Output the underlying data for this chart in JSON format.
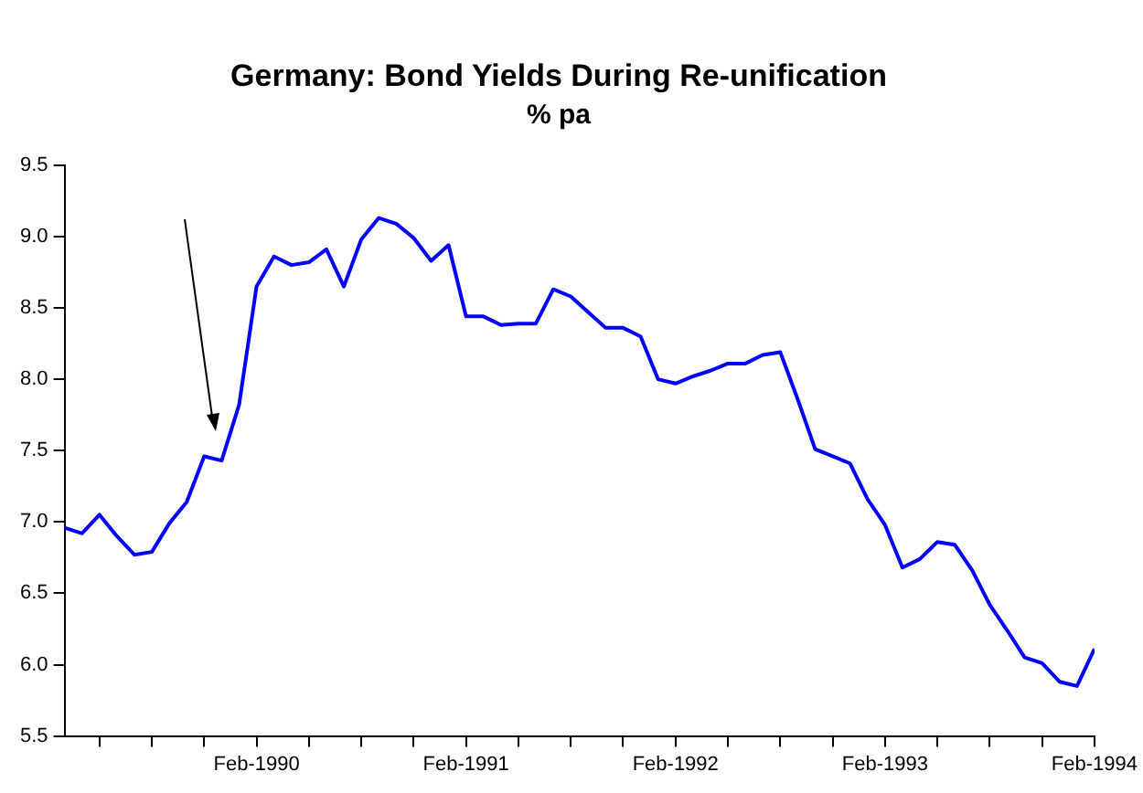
{
  "chart_data": {
    "type": "line",
    "title": "Germany: Bond Yields During Re-unification",
    "subtitle": "% pa",
    "x": [
      "1989-03",
      "1989-04",
      "1989-05",
      "1989-06",
      "1989-07",
      "1989-08",
      "1989-09",
      "1989-10",
      "1989-11",
      "1989-12",
      "1990-01",
      "1990-02",
      "1990-03",
      "1990-04",
      "1990-05",
      "1990-06",
      "1990-07",
      "1990-08",
      "1990-09",
      "1990-10",
      "1990-11",
      "1990-12",
      "1991-01",
      "1991-02",
      "1991-03",
      "1991-04",
      "1991-05",
      "1991-06",
      "1991-07",
      "1991-08",
      "1991-09",
      "1991-10",
      "1991-11",
      "1991-12",
      "1992-01",
      "1992-02",
      "1992-03",
      "1992-04",
      "1992-05",
      "1992-06",
      "1992-07",
      "1992-08",
      "1992-09",
      "1992-10",
      "1992-11",
      "1992-12",
      "1993-01",
      "1993-02",
      "1993-03",
      "1993-04",
      "1993-05",
      "1993-06",
      "1993-07",
      "1993-08",
      "1993-09",
      "1993-10",
      "1993-11",
      "1993-12",
      "1994-01",
      "1994-02"
    ],
    "series": [
      {
        "color": "#0000ff",
        "values": [
          6.96,
          6.92,
          7.05,
          6.9,
          6.77,
          6.79,
          6.99,
          7.14,
          7.46,
          7.43,
          7.82,
          8.65,
          8.86,
          8.8,
          8.82,
          8.91,
          8.65,
          8.98,
          9.13,
          9.09,
          8.99,
          8.83,
          8.94,
          8.44,
          8.44,
          8.38,
          8.39,
          8.39,
          8.63,
          8.58,
          8.47,
          8.36,
          8.36,
          8.3,
          8.0,
          7.97,
          8.02,
          8.06,
          8.11,
          8.11,
          8.17,
          8.19,
          7.86,
          7.51,
          7.46,
          7.41,
          7.16,
          6.98,
          6.68,
          6.74,
          6.86,
          6.84,
          6.66,
          6.42,
          6.24,
          6.05,
          6.01,
          5.88,
          5.85,
          6.11
        ]
      }
    ],
    "xlim": [
      "1989-03",
      "1994-02"
    ],
    "xticks": [
      {
        "value": "1989-05",
        "label": null
      },
      {
        "value": "1989-08",
        "label": null
      },
      {
        "value": "1989-11",
        "label": null
      },
      {
        "value": "1990-02",
        "label": "Feb-1990"
      },
      {
        "value": "1990-05",
        "label": null
      },
      {
        "value": "1990-08",
        "label": null
      },
      {
        "value": "1990-11",
        "label": null
      },
      {
        "value": "1991-02",
        "label": "Feb-1991"
      },
      {
        "value": "1991-05",
        "label": null
      },
      {
        "value": "1991-08",
        "label": null
      },
      {
        "value": "1991-11",
        "label": null
      },
      {
        "value": "1992-02",
        "label": "Feb-1992"
      },
      {
        "value": "1992-05",
        "label": null
      },
      {
        "value": "1992-08",
        "label": null
      },
      {
        "value": "1992-11",
        "label": null
      },
      {
        "value": "1993-02",
        "label": "Feb-1993"
      },
      {
        "value": "1993-05",
        "label": null
      },
      {
        "value": "1993-08",
        "label": null
      },
      {
        "value": "1993-11",
        "label": null
      },
      {
        "value": "1994-02",
        "label": "Feb-1994"
      }
    ],
    "ylim": [
      5.5,
      9.5
    ],
    "yticks": [
      {
        "value": 5.5,
        "label": "5.5"
      },
      {
        "value": 6,
        "label": "6.0"
      },
      {
        "value": 6.5,
        "label": "6.5"
      },
      {
        "value": 7,
        "label": "7.0"
      },
      {
        "value": 7.5,
        "label": "7.5"
      },
      {
        "value": 8,
        "label": "8.0"
      },
      {
        "value": 8.5,
        "label": "8.5"
      },
      {
        "value": 9,
        "label": "9.0"
      },
      {
        "value": 9.5,
        "label": "9.5"
      }
    ],
    "grid": false,
    "legend": false,
    "marker": "none",
    "line_style": "solid"
  }
}
